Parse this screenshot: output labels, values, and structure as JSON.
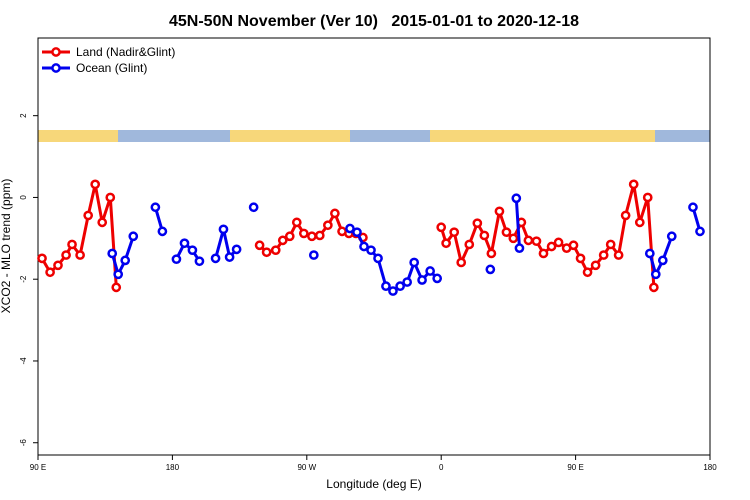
{
  "chart_data": {
    "type": "line",
    "title": "45N-50N November (Ver 10)   2015-01-01 to 2020-12-18",
    "x_label": "Longitude (deg E)",
    "y_label": "XCO2 - MLO trend (ppm)",
    "xlim": [
      90,
      540
    ],
    "ylim": [
      -6.3,
      3.9
    ],
    "xticks": [
      {
        "value": 90,
        "label": "90 E"
      },
      {
        "value": 180,
        "label": "180"
      },
      {
        "value": 270,
        "label": "90 W"
      },
      {
        "value": 360,
        "label": "0"
      },
      {
        "value": 450,
        "label": "90 E"
      },
      {
        "value": 540,
        "label": "180"
      }
    ],
    "yticks": [
      -6,
      -4,
      -2,
      0,
      2
    ],
    "legend": "top-left",
    "series": [
      {
        "name": "Land (Nadir&Glint)",
        "color": "#ee0000",
        "x": [
          92.7,
          98.1,
          103.4,
          108.8,
          112.8,
          118.2,
          123.6,
          128.3,
          133.0,
          138.4,
          142.4,
          null,
          238.4,
          243.1,
          249.2,
          253.9,
          258.6,
          263.3,
          268.0,
          273.4,
          278.7,
          284.1,
          288.8,
          293.6,
          298.2,
          302.9,
          307.6,
          null,
          360.0,
          363.3,
          368.7,
          373.4,
          378.8,
          384.2,
          388.9,
          393.6,
          399.0,
          403.7,
          408.3,
          413.7,
          418.4,
          423.8,
          428.5,
          433.9,
          438.6,
          444.0,
          448.6,
          453.3,
          458.0,
          463.4,
          468.8,
          473.5,
          478.8,
          483.5,
          488.9,
          493.0,
          498.3,
          502.4
        ],
        "values": [
          -1.49,
          -1.83,
          -1.66,
          -1.41,
          -1.15,
          -1.41,
          -0.44,
          0.32,
          -0.61,
          0,
          -2.2,
          null,
          -1.17,
          -1.34,
          -1.29,
          -1.05,
          -0.95,
          -0.61,
          -0.88,
          -0.95,
          -0.93,
          -0.68,
          -0.39,
          -0.83,
          -0.88,
          -0.88,
          -0.98,
          null,
          -0.73,
          -1.12,
          -0.85,
          -1.59,
          -1.15,
          -0.63,
          -0.93,
          -1.37,
          -0.34,
          -0.85,
          -1.0,
          -0.61,
          -1.05,
          -1.07,
          -1.37,
          -1.2,
          -1.1,
          -1.24,
          -1.17,
          -1.49,
          -1.83,
          -1.66,
          -1.41,
          -1.15,
          -1.41,
          -0.44,
          0.32,
          -0.61,
          0,
          -2.2
        ]
      },
      {
        "name": "Ocean (Glint)",
        "color": "#0000ee",
        "x": [
          139.7,
          143.7,
          148.4,
          153.8,
          null,
          168.6,
          173.3,
          null,
          182.7,
          188.1,
          193.4,
          198.1,
          null,
          208.9,
          214.2,
          218.3,
          223.0,
          null,
          234.4,
          null,
          274.7,
          null,
          298.9,
          303.6,
          308.3,
          313.0,
          317.7,
          323.0,
          327.7,
          332.5,
          337.2,
          341.9,
          347.2,
          352.6,
          357.3,
          null,
          392.9,
          null,
          410.3,
          412.4,
          null,
          499.7,
          503.7,
          508.4,
          514.4,
          null,
          528.6,
          533.3
        ],
        "values": [
          -1.37,
          -1.88,
          -1.54,
          -0.95,
          null,
          -0.24,
          -0.83,
          null,
          -1.51,
          -1.12,
          -1.29,
          -1.56,
          null,
          -1.49,
          -0.78,
          -1.46,
          -1.27,
          null,
          -0.24,
          null,
          -1.41,
          null,
          -0.76,
          -0.85,
          -1.2,
          -1.29,
          -1.49,
          -2.17,
          -2.29,
          -2.17,
          -2.07,
          -1.59,
          -2.02,
          -1.8,
          -1.98,
          null,
          -1.76,
          null,
          -0.02,
          -1.24,
          null,
          -1.37,
          -1.88,
          -1.54,
          -0.95,
          null,
          -0.24,
          -0.83
        ]
      }
    ]
  }
}
